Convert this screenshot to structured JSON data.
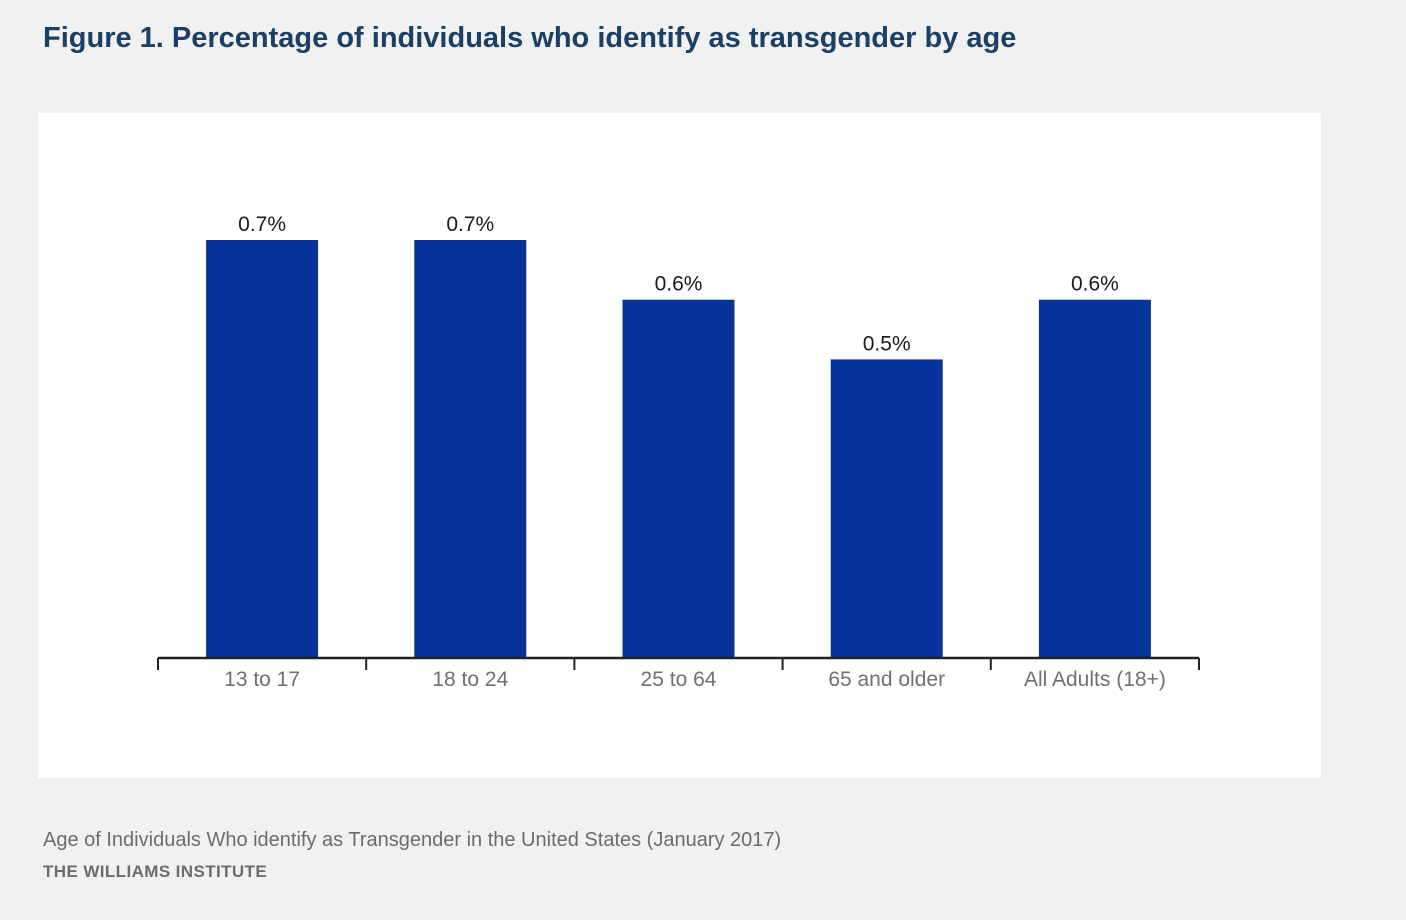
{
  "figure": {
    "title": "Figure 1. Percentage of individuals who identify as transgender by age"
  },
  "chart_data": {
    "type": "bar",
    "categories": [
      "13 to 17",
      "18 to 24",
      "25 to 64",
      "65 and older",
      "All Adults (18+)"
    ],
    "values": [
      0.7,
      0.7,
      0.6,
      0.5,
      0.6
    ],
    "value_labels": [
      "0.7%",
      "0.7%",
      "0.6%",
      "0.5%",
      "0.6%"
    ],
    "ylim": [
      0,
      0.7
    ],
    "grid": false,
    "colors": {
      "bar": "#06349b",
      "axis": "#222222",
      "value_label": "#1a1a1a",
      "tick_label": "#707070"
    }
  },
  "footer": {
    "caption": "Age of Individuals Who identify as Transgender in the United States (January 2017)",
    "source": "THE WILLIAMS INSTITUTE"
  }
}
